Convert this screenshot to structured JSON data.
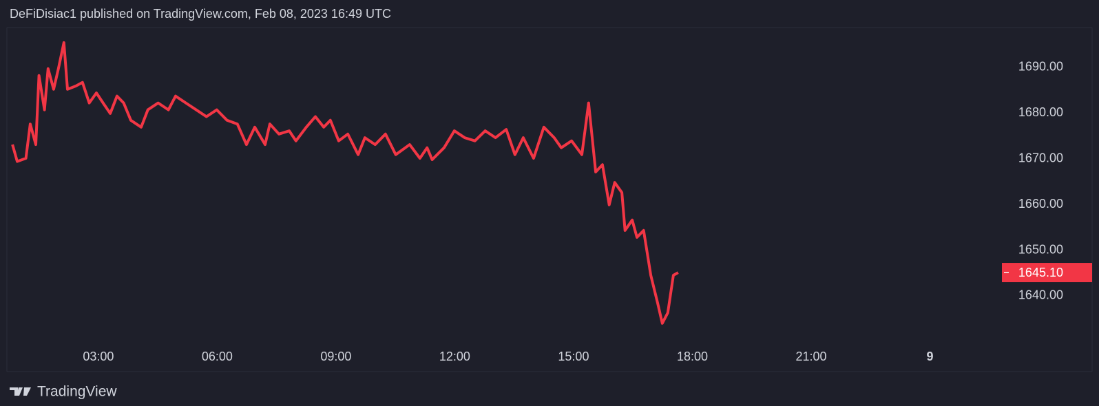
{
  "header": {
    "title": "DeFiDisiac1 published on TradingView.com, Feb 08, 2023 16:49 UTC"
  },
  "footer": {
    "brand": "TradingView"
  },
  "chart_data": {
    "type": "line",
    "x": [
      0.83,
      0.95,
      1.17,
      1.28,
      1.42,
      1.5,
      1.64,
      1.73,
      1.87,
      1.99,
      2.13,
      2.22,
      2.43,
      2.6,
      2.77,
      2.95,
      3.12,
      3.3,
      3.47,
      3.64,
      3.82,
      4.08,
      4.25,
      4.51,
      4.77,
      4.95,
      5.21,
      5.47,
      5.73,
      5.99,
      6.25,
      6.51,
      6.74,
      6.95,
      7.21,
      7.33,
      7.56,
      7.82,
      7.99,
      8.25,
      8.48,
      8.69,
      8.86,
      9.07,
      9.3,
      9.56,
      9.73,
      9.99,
      10.25,
      10.51,
      10.86,
      11.12,
      11.3,
      11.43,
      11.73,
      11.99,
      12.25,
      12.51,
      12.77,
      13.03,
      13.3,
      13.52,
      13.73,
      13.99,
      14.25,
      14.51,
      14.69,
      14.95,
      15.21,
      15.38,
      15.56,
      15.73,
      15.9,
      16.04,
      16.22,
      16.3,
      16.48,
      16.6,
      16.77,
      16.95,
      17.12,
      17.24,
      17.38,
      17.52,
      17.64
    ],
    "series": [
      {
        "color": "#f23645",
        "values": [
          1673.1,
          1669.4,
          1670.1,
          1677.6,
          1673.1,
          1688.2,
          1680.7,
          1689.7,
          1685.2,
          1689.7,
          1695.4,
          1685.2,
          1685.9,
          1686.7,
          1682.2,
          1684.4,
          1682.2,
          1679.9,
          1683.7,
          1682.2,
          1678.4,
          1676.9,
          1680.7,
          1682.2,
          1680.7,
          1683.7,
          1682.2,
          1680.7,
          1679.2,
          1680.7,
          1678.4,
          1677.6,
          1673.1,
          1676.9,
          1673.1,
          1677.6,
          1675.4,
          1676.1,
          1673.9,
          1676.9,
          1679.2,
          1676.9,
          1678.4,
          1673.9,
          1675.4,
          1670.9,
          1674.6,
          1673.1,
          1675.4,
          1670.9,
          1673.1,
          1670.1,
          1672.4,
          1669.8,
          1672.4,
          1676.1,
          1674.6,
          1673.9,
          1676.1,
          1674.6,
          1676.4,
          1670.9,
          1674.6,
          1670.1,
          1676.9,
          1674.6,
          1672.4,
          1673.9,
          1670.9,
          1682.2,
          1667.1,
          1668.7,
          1659.9,
          1664.8,
          1662.6,
          1654.3,
          1656.6,
          1652.8,
          1654.3,
          1644.5,
          1638.5,
          1634.0,
          1636.3,
          1644.5,
          1645.1
        ]
      }
    ],
    "last_price": {
      "value": 1645.1,
      "label": "1645.10"
    },
    "xlim": [
      0.69,
      25.73
    ],
    "xticks": [
      {
        "value": 3,
        "label": "03:00"
      },
      {
        "value": 6,
        "label": "06:00"
      },
      {
        "value": 9,
        "label": "09:00"
      },
      {
        "value": 12,
        "label": "12:00"
      },
      {
        "value": 15,
        "label": "15:00"
      },
      {
        "value": 18,
        "label": "18:00"
      },
      {
        "value": 21,
        "label": "21:00"
      },
      {
        "value": 24,
        "label": "9"
      }
    ],
    "ylim": [
      1629.0,
      1698.7
    ],
    "yticks": [
      {
        "value": 1640,
        "label": "1640.00"
      },
      {
        "value": 1650,
        "label": "1650.00"
      },
      {
        "value": 1660,
        "label": "1660.00"
      },
      {
        "value": 1670,
        "label": "1670.00"
      },
      {
        "value": 1680,
        "label": "1680.00"
      },
      {
        "value": 1690,
        "label": "1690.00"
      }
    ]
  }
}
